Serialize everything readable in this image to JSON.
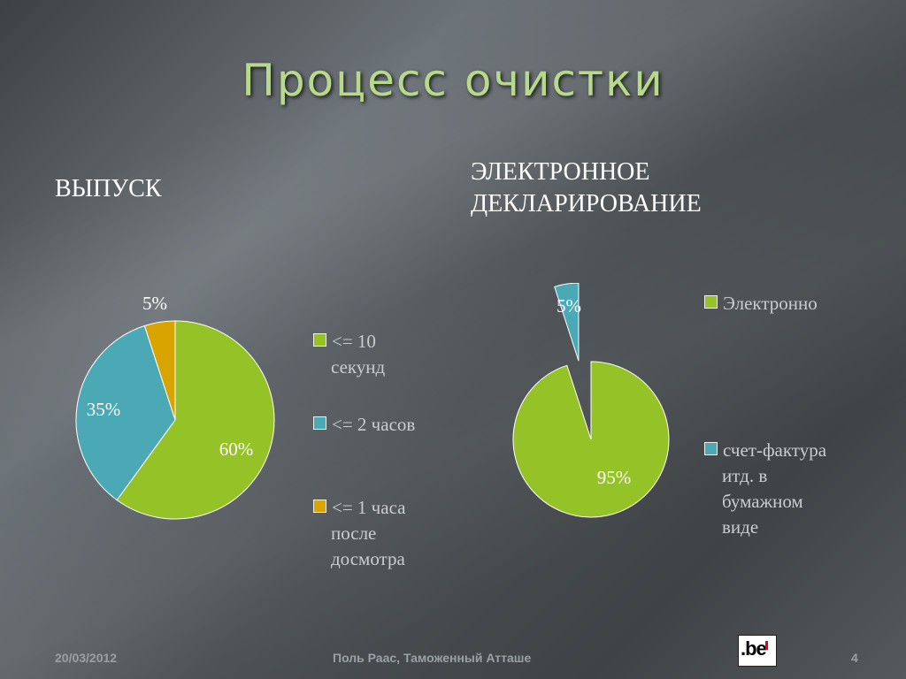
{
  "title": "Процесс очистки",
  "left": {
    "heading": "ВЫПУСК"
  },
  "right": {
    "heading_line1": "ЭЛЕКТРОННОЕ",
    "heading_line2": "ДЕКЛАРИРОВАНИЕ"
  },
  "chart_data": [
    {
      "type": "pie",
      "title": "ВЫПУСК",
      "categories": [
        "<= 10 секунд",
        "<= 2 часов",
        "<= 1 часа после досмотра"
      ],
      "values": [
        60,
        35,
        5
      ],
      "labels": [
        "60%",
        "35%",
        "5%"
      ],
      "colors": [
        "#95c227",
        "#4aa9b5",
        "#d9a400"
      ],
      "legend": {
        "position": "right",
        "lines": [
          [
            "<= 10",
            "секунд"
          ],
          [
            "<= 2 часов"
          ],
          [
            "<= 1 часа",
            "после",
            "досмотра"
          ]
        ]
      }
    },
    {
      "type": "pie",
      "title": "ЭЛЕКТРОННОЕ ДЕКЛАРИРОВАНИЕ",
      "categories": [
        "Электронно",
        "счет-фактура итд. в бумажном виде"
      ],
      "values": [
        95,
        5
      ],
      "labels": [
        "95%",
        "5%"
      ],
      "colors": [
        "#95c227",
        "#4aa9b5"
      ],
      "exploded": [
        false,
        true
      ],
      "legend": {
        "position": "right",
        "lines": [
          [
            "Электронно"
          ],
          [
            "счет-фактура",
            "итд. в",
            "бумажном",
            "виде"
          ]
        ]
      }
    }
  ],
  "footer": {
    "date": "20/03/2012",
    "author": "Поль Раас, Таможенный Атташе",
    "page": "4"
  },
  "logo": {
    "text": ".be"
  }
}
